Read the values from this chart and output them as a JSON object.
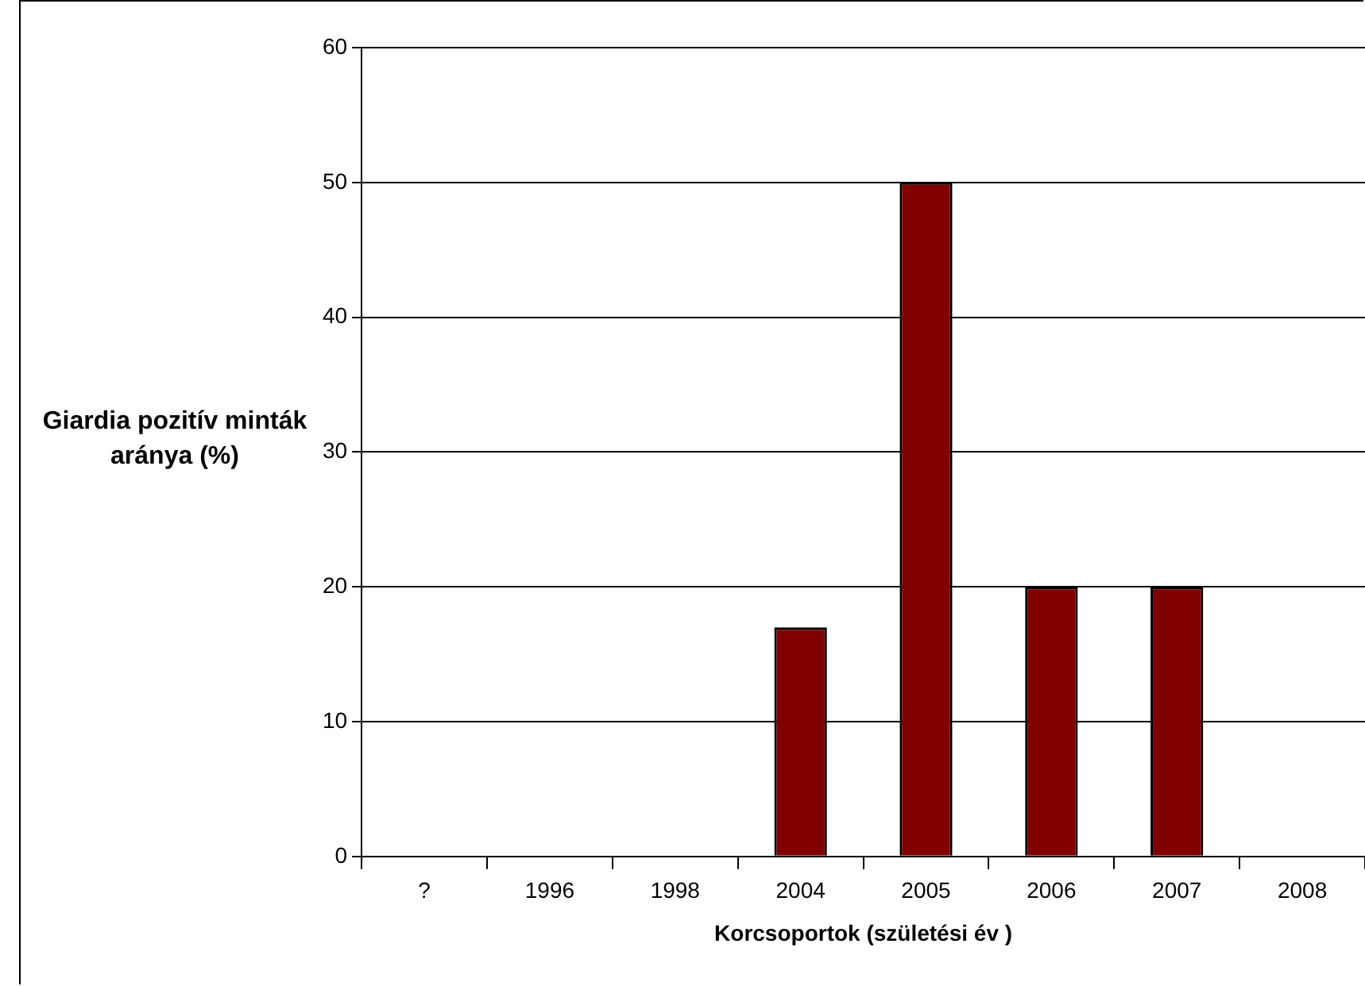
{
  "chart_data": {
    "type": "bar",
    "xlabel": "Korcsoportok (születési év )",
    "ylabel": "Giardia pozitív minták aránya (%)",
    "categories": [
      "?",
      "1996",
      "1998",
      "2004",
      "2005",
      "2006",
      "2007",
      "2008"
    ],
    "values": [
      0,
      0,
      0,
      17,
      50,
      20,
      20,
      0
    ],
    "color": "#800000",
    "ylim": [
      0,
      60
    ],
    "yticks": [
      0,
      10,
      20,
      30,
      40,
      50,
      60
    ],
    "grid": "y",
    "legend": false
  }
}
